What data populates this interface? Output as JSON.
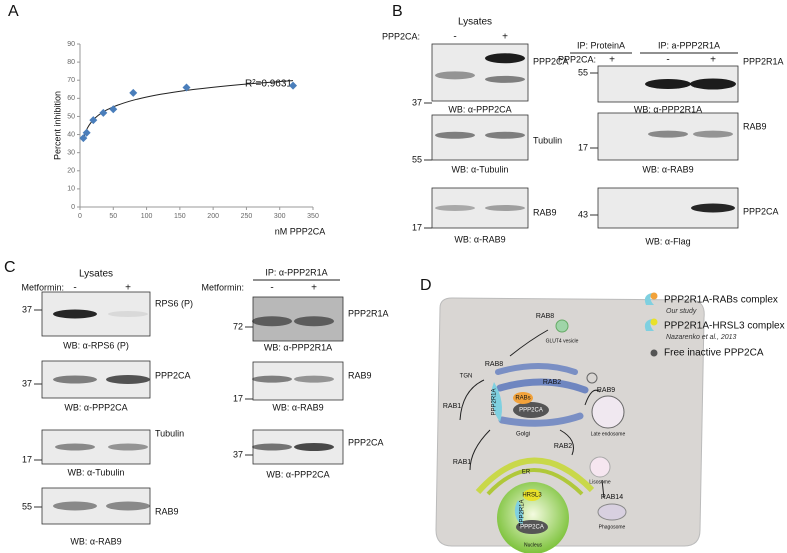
{
  "panel_labels": [
    "A",
    "B",
    "C",
    "D"
  ],
  "chart_data": {
    "type": "scatter",
    "y_label": "Percent inhibition",
    "x_label": "nM PPP2CA",
    "annotation": "R²=0.9631",
    "x": [
      5,
      10,
      20,
      35,
      50,
      80,
      160,
      320
    ],
    "values": [
      38,
      41,
      48,
      52,
      54,
      63,
      66,
      67
    ],
    "color": "#4a7ebb",
    "xlim": [
      0,
      350
    ],
    "ylim": [
      0,
      90
    ],
    "xticks": [
      0,
      50,
      100,
      150,
      200,
      250,
      300,
      350
    ],
    "yticks": [
      0,
      10,
      20,
      30,
      40,
      50,
      60,
      70,
      80,
      90
    ],
    "trendline": "logarithmic"
  },
  "panel_b": {
    "lysates": {
      "title": "Lysates",
      "condition_label": "PPP2CA:",
      "conditions": [
        "-",
        "+"
      ],
      "blots": [
        {
          "marker": "37",
          "target": "PPP2CA",
          "wb": "WB: α-PPP2CA"
        },
        {
          "marker": "55",
          "target": "Tubulin",
          "wb": "WB: α-Tubulin"
        },
        {
          "marker": "17",
          "target": "RAB9",
          "wb": "WB: α-RAB9"
        }
      ]
    },
    "ip": {
      "ip_groups": [
        "IP: ProteinA",
        "IP: a-PPP2R1A"
      ],
      "condition_label": "PPP2CA:",
      "conditions": [
        "+",
        "-",
        "+"
      ],
      "blots": [
        {
          "marker": "55",
          "target": "PPP2R1A",
          "wb": "WB: α-PPP2R1A"
        },
        {
          "marker": "17",
          "target": "RAB9",
          "wb": "WB: α-RAB9"
        },
        {
          "marker": "43",
          "target": "PPP2CA",
          "wb": "WB: α-Flag"
        }
      ]
    }
  },
  "panel_c": {
    "lysates": {
      "title": "Lysates",
      "condition_label": "Metformin:",
      "conditions": [
        "-",
        "+"
      ],
      "blots": [
        {
          "marker": "37",
          "target": "RPS6 (P)",
          "wb": "WB: α-RPS6 (P)"
        },
        {
          "marker": "37",
          "target": "PPP2CA",
          "wb": "WB: α-PPP2CA"
        },
        {
          "marker": "17",
          "target": "Tubulin",
          "wb": "WB: α-Tubulin"
        },
        {
          "marker": "55",
          "target": "RAB9",
          "wb": "WB: α-RAB9"
        }
      ]
    },
    "ip": {
      "ip_groups": [
        "IP: α-PPP2R1A"
      ],
      "condition_label": "Metformin:",
      "conditions": [
        "-",
        "+"
      ],
      "blots": [
        {
          "marker": "72",
          "target": "PPP2R1A",
          "wb": "WB: α-PPP2R1A"
        },
        {
          "marker": "17",
          "target": "RAB9",
          "wb": "WB: α-RAB9"
        },
        {
          "marker": "37",
          "target": "PPP2CA",
          "wb": "WB: α-PPP2CA"
        }
      ]
    }
  },
  "panel_d": {
    "legend": [
      {
        "label": "PPP2R1A-RABs complex",
        "note": "Our study"
      },
      {
        "label": "PPP2R1A-HRSL3 complex",
        "note": "Nazarenko et al., 2013"
      },
      {
        "label": "Free inactive PPP2CA"
      }
    ],
    "labels": [
      "RAB8",
      "GLUT4 vesicle",
      "RAB8",
      "TGN",
      "RAB2",
      "RAB1",
      "PPP2R1A",
      "RABs",
      "PPP2CA",
      "Golgi",
      "RAB2",
      "RAB9",
      "Late endosome",
      "RAB1",
      "Lisosome",
      "ER",
      "RAB14",
      "Phagosome",
      "HRSL3",
      "PPP2R1A",
      "PPP2CA",
      "Nucleus"
    ]
  }
}
